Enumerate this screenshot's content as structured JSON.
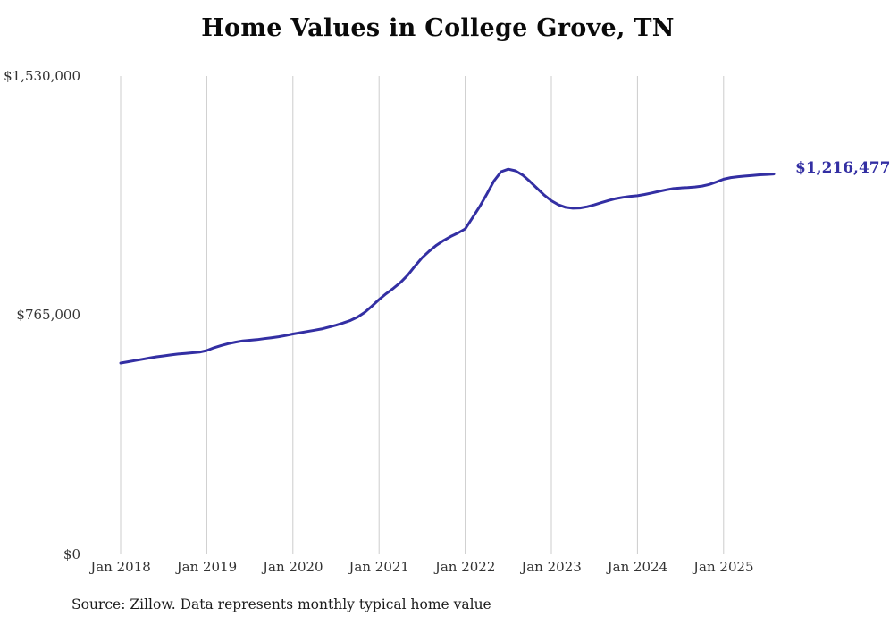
{
  "title": "Home Values in College Grove, TN",
  "source": "Source: Zillow. Data represents monthly typical home value",
  "end_label": "$1,216,477",
  "chart_data": {
    "type": "line",
    "title": "Home Values in College Grove, TN",
    "xlabel": "",
    "ylabel": "",
    "x_start": "2018-01",
    "x_end": "2025-08",
    "x_ticks": [
      "Jan 2018",
      "Jan 2019",
      "Jan 2020",
      "Jan 2021",
      "Jan 2022",
      "Jan 2023",
      "Jan 2024",
      "Jan 2025"
    ],
    "y_ticks": [
      "$0",
      "$765,000",
      "$1,530,000"
    ],
    "ylim": [
      0,
      1530000
    ],
    "grid": "vertical-only",
    "legend": "none",
    "line_color": "#332fa3",
    "grid_color": "#cccccc",
    "end_value_label": "$1,216,477",
    "series_name": "Typical home value (monthly)",
    "values": [
      612000,
      616000,
      620000,
      624000,
      628000,
      632000,
      635000,
      638000,
      641000,
      643000,
      645000,
      647000,
      652000,
      661000,
      668000,
      674000,
      679000,
      683000,
      685000,
      687000,
      690000,
      693000,
      696000,
      700000,
      705000,
      709000,
      713000,
      717000,
      721000,
      727000,
      733000,
      740000,
      748000,
      759000,
      774000,
      794000,
      815000,
      834000,
      851000,
      870000,
      893000,
      922000,
      949000,
      970000,
      989000,
      1004000,
      1017000,
      1028000,
      1041000,
      1076000,
      1112000,
      1152000,
      1194000,
      1224000,
      1232000,
      1227000,
      1213000,
      1193000,
      1171000,
      1149000,
      1131000,
      1118000,
      1110000,
      1107000,
      1108000,
      1112000,
      1118000,
      1125000,
      1132000,
      1138000,
      1142000,
      1145000,
      1147000,
      1151000,
      1156000,
      1161000,
      1166000,
      1170000,
      1172000,
      1173000,
      1175000,
      1178000,
      1183000,
      1191000,
      1200000,
      1205000,
      1208000,
      1210000,
      1212000,
      1214000,
      1215000,
      1216477
    ]
  }
}
